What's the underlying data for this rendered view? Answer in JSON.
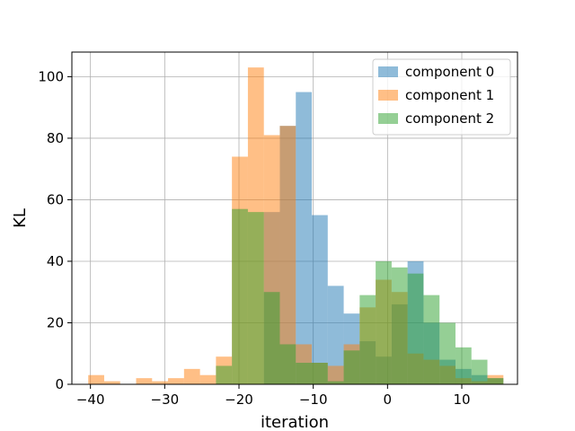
{
  "chart_data": {
    "type": "bar",
    "histogram": true,
    "xlabel": "iteration",
    "ylabel": "KL",
    "xlim": [
      -42.5,
      17.5
    ],
    "ylim": [
      0,
      108
    ],
    "xticks": [
      -40,
      -30,
      -20,
      -10,
      0,
      10
    ],
    "yticks": [
      0,
      20,
      40,
      60,
      80,
      100
    ],
    "grid": true,
    "legend_position": "top-right",
    "bins": {
      "start": -40.3,
      "width": 2.15,
      "count": 26
    },
    "series": [
      {
        "name": "component 0",
        "color": "#1f77b4",
        "values": [
          0,
          0,
          0,
          0,
          0,
          0,
          0,
          0,
          0,
          0,
          0,
          56,
          84,
          95,
          55,
          32,
          23,
          14,
          9,
          26,
          40,
          20,
          8,
          5,
          3,
          2
        ]
      },
      {
        "name": "component 1",
        "color": "#ff7f0e",
        "values": [
          3,
          1,
          0,
          2,
          1,
          2,
          5,
          3,
          9,
          74,
          103,
          81,
          84,
          13,
          7,
          6,
          13,
          25,
          34,
          30,
          10,
          8,
          6,
          2,
          1,
          3
        ]
      },
      {
        "name": "component 2",
        "color": "#2ca02c",
        "values": [
          0,
          0,
          0,
          0,
          0,
          0,
          0,
          0,
          6,
          57,
          56,
          30,
          13,
          7,
          7,
          1,
          11,
          29,
          40,
          38,
          36,
          29,
          20,
          12,
          8,
          2
        ]
      }
    ]
  }
}
